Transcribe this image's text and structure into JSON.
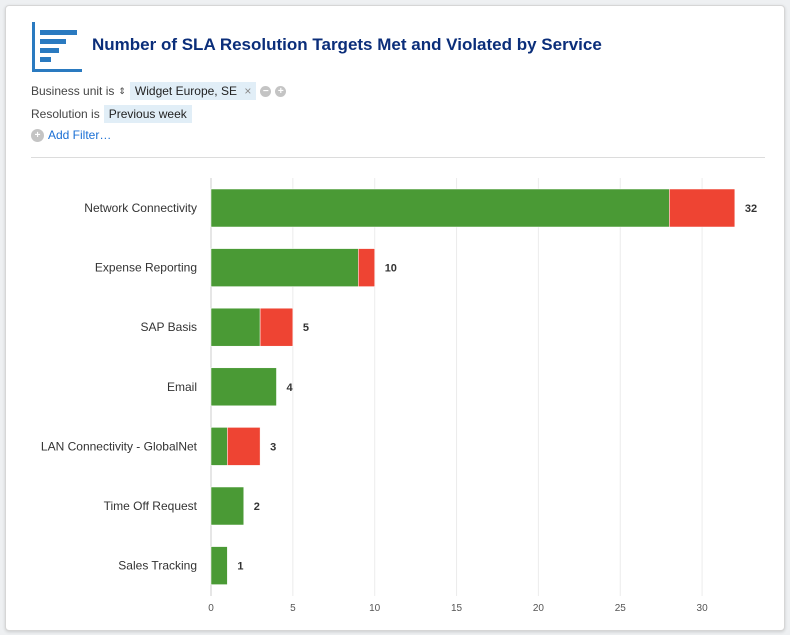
{
  "header": {
    "title": "Number of SLA Resolution Targets Met and Violated by Service",
    "icon": "bar-chart-icon"
  },
  "filters": [
    {
      "label": "Business unit is",
      "value": "Widget Europe, SE",
      "remove": "×"
    },
    {
      "label": "Resolution is",
      "value": "Previous week"
    }
  ],
  "add_filter": "Add Filter…",
  "colors": {
    "met": "#4a9a35",
    "violated": "#ee4433",
    "title": "#0b2e7a"
  },
  "chart_data": {
    "type": "bar",
    "orientation": "horizontal",
    "stacked": true,
    "categories": [
      "Network Connectivity",
      "Expense Reporting",
      "SAP Basis",
      "Email",
      "LAN Connectivity - GlobalNet",
      "Time Off Request",
      "Sales Tracking"
    ],
    "series": [
      {
        "values": [
          28,
          9,
          3,
          4,
          1,
          2,
          1
        ],
        "color": "#4a9a35"
      },
      {
        "values": [
          4,
          1,
          2,
          0,
          2,
          0,
          0
        ],
        "color": "#ee4433"
      }
    ],
    "totals": [
      32,
      10,
      5,
      4,
      3,
      2,
      1
    ],
    "xlim": [
      0,
      32
    ],
    "xticks": [
      0,
      5,
      10,
      15,
      20,
      25,
      30
    ],
    "grid": true
  }
}
